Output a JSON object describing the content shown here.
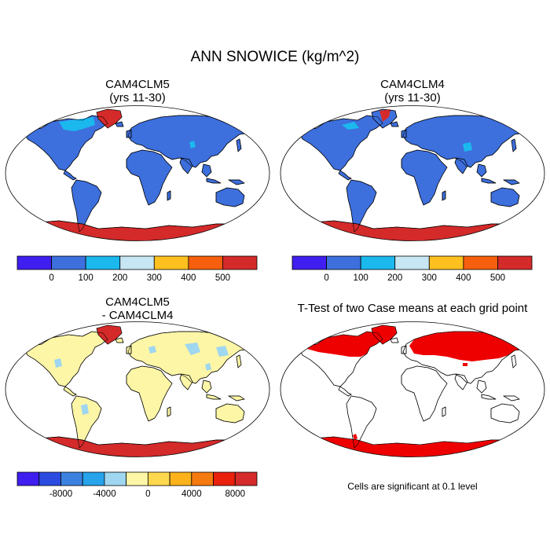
{
  "title": "ANN SNOWICE (kg/m^2)",
  "panels": [
    {
      "id": "p1",
      "title_line1": "CAM4CLM5",
      "title_line2": "(yrs 11-30)",
      "scheme": "abs5"
    },
    {
      "id": "p2",
      "title_line1": "CAM4CLM4",
      "title_line2": "(yrs 11-30)",
      "scheme": "abs4"
    },
    {
      "id": "p3",
      "title_line1": "CAM4CLM5",
      "title_line2": "- CAM4CLM4",
      "scheme": "diff"
    },
    {
      "id": "p4",
      "title_line1": "T-Test of two Case means at each grid point",
      "title_line2": "",
      "scheme": "ttest"
    }
  ],
  "colorbars": {
    "abs": {
      "colors": [
        "#3f1ef0",
        "#3d6fdd",
        "#1bb8ee",
        "#c7e6f4",
        "#fdc01f",
        "#f55f0e",
        "#d42a2a"
      ],
      "labels": [
        "0",
        "100",
        "200",
        "300",
        "400",
        "500"
      ]
    },
    "diff": {
      "colors": [
        "#3f1ef0",
        "#2b4be0",
        "#3b82e0",
        "#26a3ea",
        "#9fd6f0",
        "#fdf6a6",
        "#fdd84e",
        "#fcb21a",
        "#f57a10",
        "#e8200c",
        "#d42a2a"
      ],
      "labels": [
        "-8000",
        "-4000",
        "0",
        "4000",
        "8000"
      ]
    }
  },
  "ttest_note": "Cells are significant at 0.1 level",
  "colors": {
    "land_abs": "#3d6fdd",
    "land_diff": "#fdf6a6",
    "antarctic": "#d42a2a",
    "greenland": "#d42a2a",
    "significant": "#ee0000",
    "light_snow": "#1bb8ee",
    "diff_negative": "#9fd6f0"
  }
}
